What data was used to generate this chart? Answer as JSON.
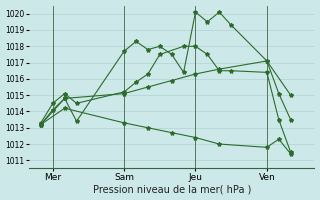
{
  "bg_color": "#cce8e8",
  "grid_color": "#aacccc",
  "line_color": "#2d6b2d",
  "xlabel": "Pression niveau de la mer( hPa )",
  "ylim": [
    1010.5,
    1020.5
  ],
  "yticks": [
    1011,
    1012,
    1013,
    1014,
    1015,
    1016,
    1017,
    1018,
    1019,
    1020
  ],
  "xtick_labels": [
    "Mer",
    "Sam",
    "Jeu",
    "Ven"
  ],
  "xtick_positions": [
    1,
    4,
    7,
    10
  ],
  "vlines": [
    1,
    4,
    7,
    10
  ],
  "xlim": [
    0,
    12
  ],
  "series": [
    {
      "x": [
        0.5,
        1.0,
        1.5,
        2.0,
        4.0,
        4.5,
        5.0,
        5.5,
        6.0,
        6.5,
        7.0,
        7.5,
        8.0,
        8.5,
        10.0,
        10.5,
        11.0
      ],
      "y": [
        1013.2,
        1014.1,
        1014.8,
        1013.4,
        1017.7,
        1018.3,
        1017.8,
        1018.0,
        1017.5,
        1016.4,
        1020.1,
        1019.5,
        1020.1,
        1019.3,
        1017.1,
        1015.1,
        1013.5
      ]
    },
    {
      "x": [
        0.5,
        1.0,
        1.5,
        2.0,
        4.0,
        4.5,
        5.0,
        5.5,
        6.5,
        7.0,
        7.5,
        8.0,
        8.5,
        10.0,
        10.5,
        11.0
      ],
      "y": [
        1013.3,
        1014.5,
        1015.1,
        1014.5,
        1015.2,
        1015.8,
        1016.3,
        1017.5,
        1018.0,
        1018.0,
        1017.5,
        1016.5,
        1016.5,
        1016.4,
        1013.5,
        1011.5
      ]
    },
    {
      "x": [
        0.5,
        1.5,
        4.0,
        5.0,
        6.0,
        7.0,
        8.0,
        10.0,
        11.0
      ],
      "y": [
        1013.2,
        1014.8,
        1015.1,
        1015.5,
        1015.9,
        1016.3,
        1016.6,
        1017.1,
        1015.0
      ]
    },
    {
      "x": [
        0.5,
        1.5,
        4.0,
        5.0,
        6.0,
        7.0,
        8.0,
        10.0,
        10.5,
        11.0
      ],
      "y": [
        1013.2,
        1014.2,
        1013.3,
        1013.0,
        1012.7,
        1012.4,
        1012.0,
        1011.8,
        1012.3,
        1011.4
      ]
    }
  ]
}
